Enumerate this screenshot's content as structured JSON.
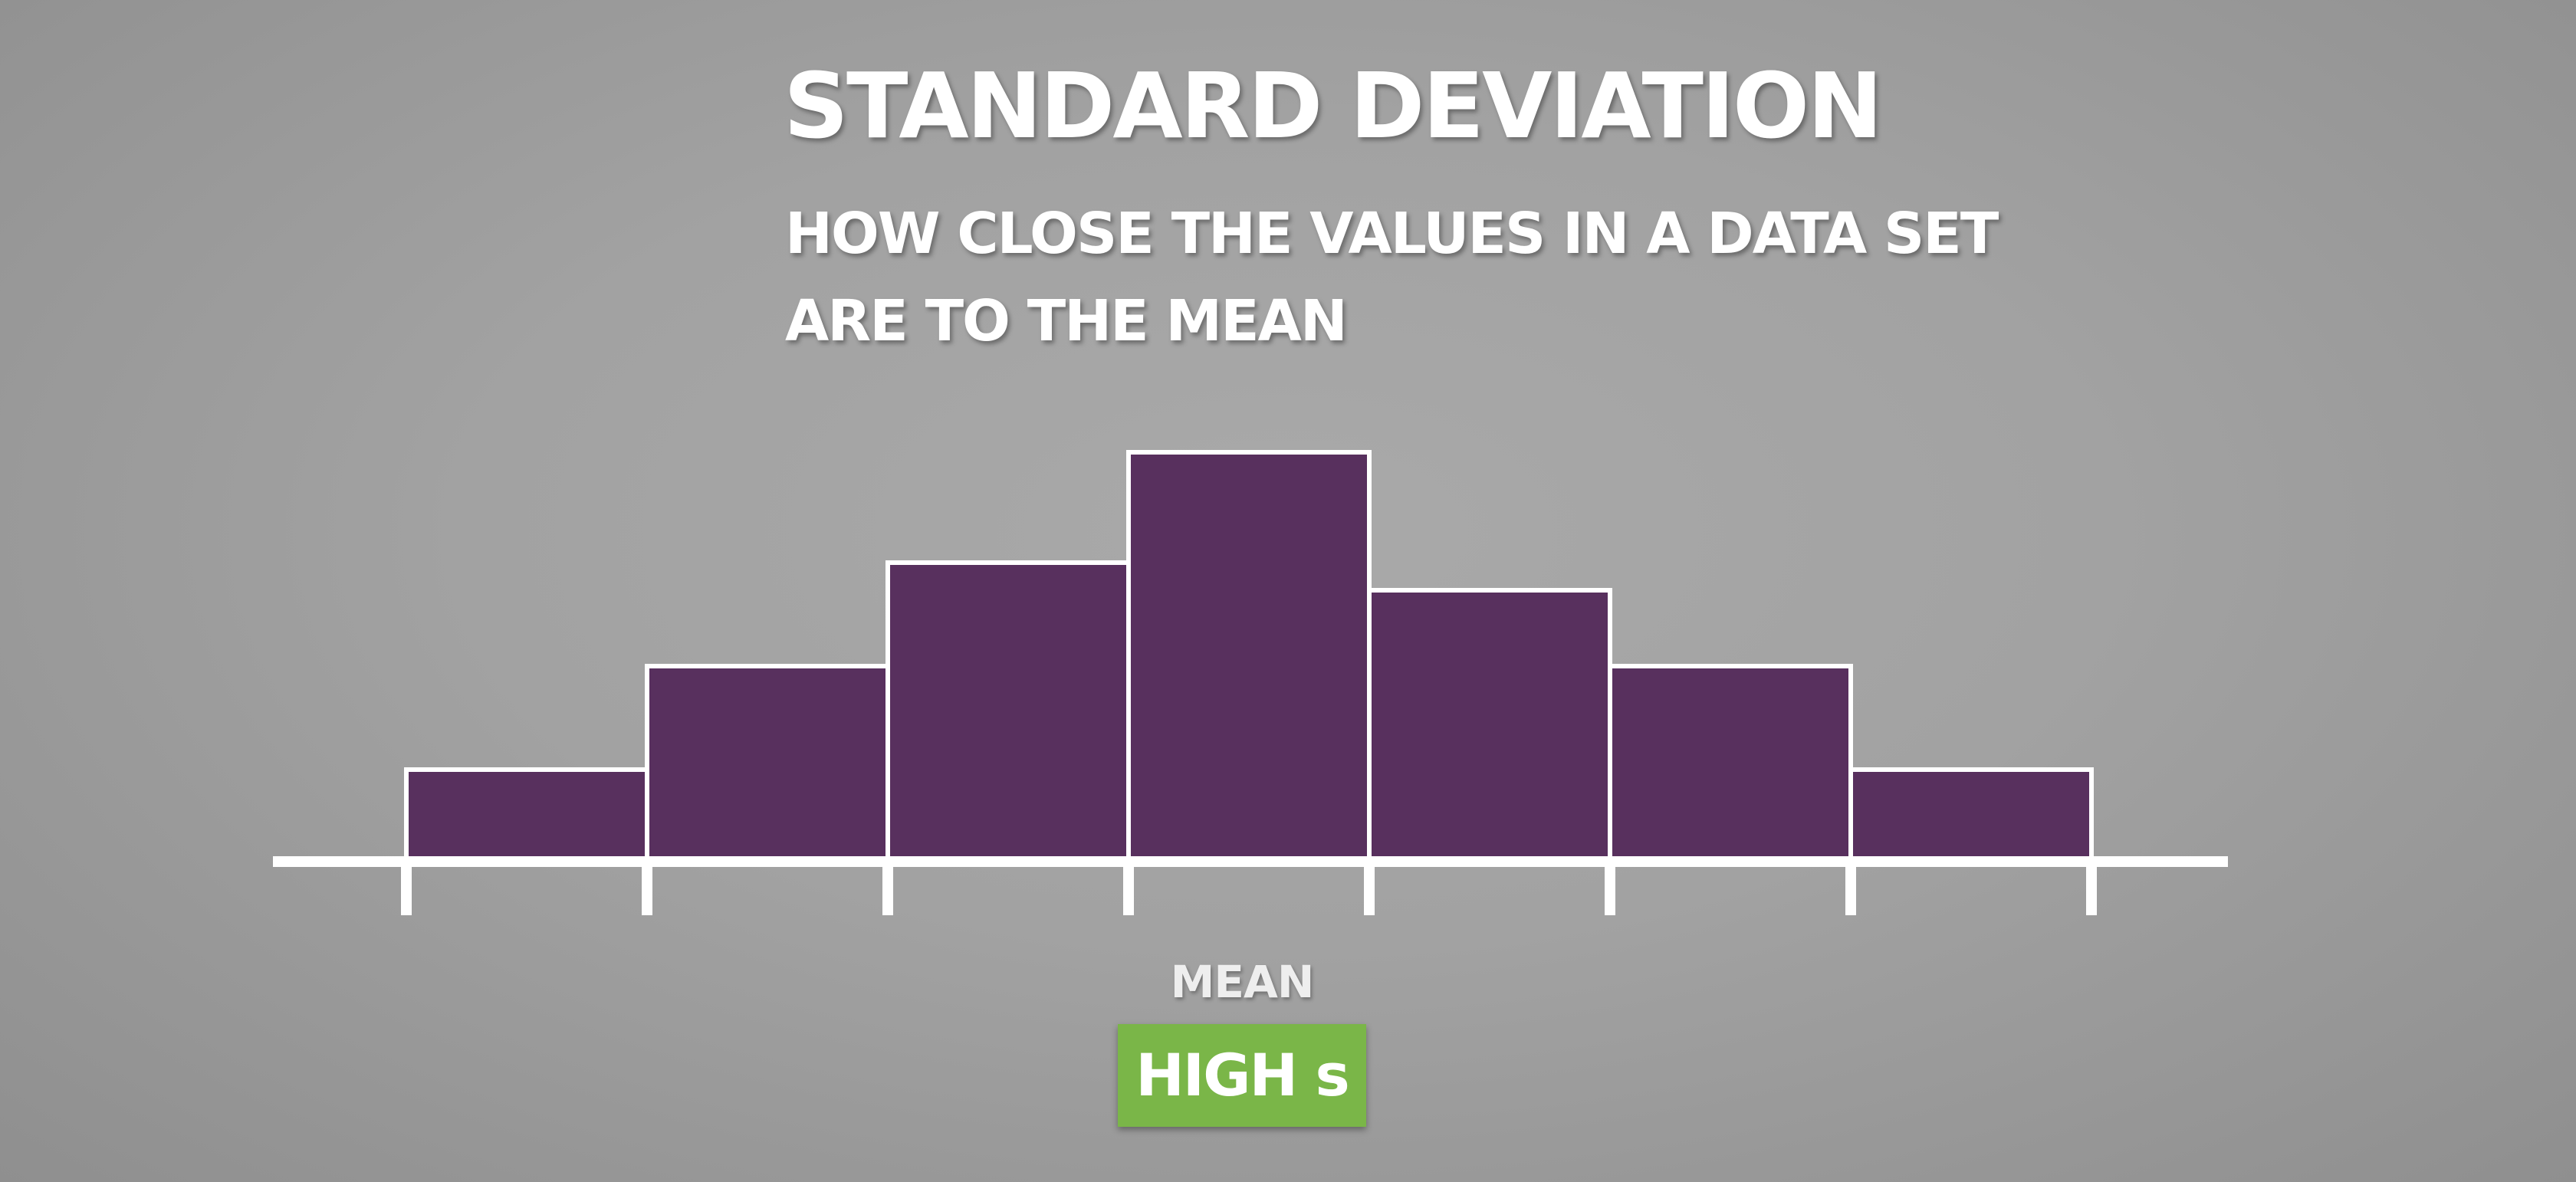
{
  "slide": {
    "title": "STANDARD DEVIATION",
    "subtitle_lines": [
      "HOW CLOSE THE VALUES IN A DATA SET",
      "ARE TO THE MEAN"
    ],
    "mean_label": "MEAN",
    "badge_label": "HIGH s",
    "colors": {
      "bar_fill": "#58305e",
      "outline": "#ffffff",
      "badge": "#7ab648"
    }
  },
  "chart_data": {
    "type": "bar",
    "categories": [
      "",
      "",
      "",
      "",
      "",
      "",
      ""
    ],
    "values": [
      2,
      4.25,
      6.5,
      8.9,
      5.9,
      4.25,
      2
    ],
    "ylim": [
      0,
      9
    ],
    "grid": false,
    "tick_count": 8,
    "annotations": [
      {
        "text": "MEAN",
        "position": "below fourth tick"
      }
    ]
  }
}
